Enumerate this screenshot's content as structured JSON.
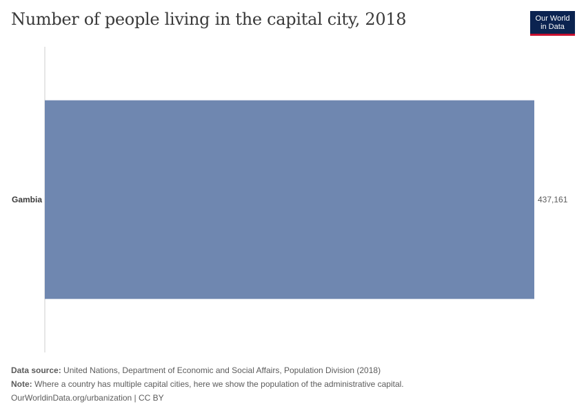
{
  "header": {
    "title": "Number of people living in the capital city, 2018",
    "logo_line1": "Our World",
    "logo_line2": "in Data"
  },
  "chart_data": {
    "type": "bar",
    "orientation": "horizontal",
    "title": "Number of people living in the capital city, 2018",
    "categories": [
      "Gambia"
    ],
    "values": [
      437161
    ],
    "value_labels": [
      "437,161"
    ],
    "bar_color": "#6f87b0",
    "xlim": [
      0,
      437161
    ],
    "xlabel": "",
    "ylabel": "",
    "grid": false
  },
  "footer": {
    "source_label": "Data source:",
    "source_text": "United Nations, Department of Economic and Social Affairs, Population Division (2018)",
    "note_label": "Note:",
    "note_text": "Where a country has multiple capital cities, here we show the population of the administrative capital.",
    "credit": "OurWorldinData.org/urbanization | CC BY"
  }
}
